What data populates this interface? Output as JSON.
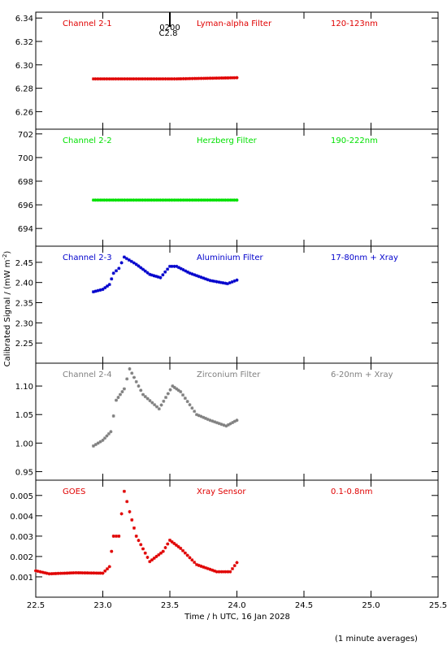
{
  "figure": {
    "ylabel": "Calibrated Signal / (mW m",
    "ylabel_sup": "-2",
    "ylabel_close": ")",
    "xlabel": "Time / h UTC, 16 Jan 2028",
    "footnote": "(1 minute averages)",
    "flare_marker": {
      "time_label": "0200",
      "class_label": "C2.8",
      "x": 23.5
    },
    "x_ticks": [
      "22.5",
      "23.0",
      "23.5",
      "24.0",
      "24.5",
      "25.0",
      "25.5"
    ],
    "xlim": [
      22.5,
      25.5
    ]
  },
  "chart_data": [
    {
      "type": "scatter",
      "channel_label": "Channel 2-1",
      "filter_label": "Lyman-alpha Filter",
      "band_label": "120-123nm",
      "color": "#e00000",
      "ylim": [
        6.245,
        6.345
      ],
      "y_ticks": [
        "6.26",
        "6.28",
        "6.30",
        "6.32",
        "6.34"
      ],
      "series": [
        {
          "segments": [
            {
              "x": [
                22.93,
                23.55,
                24.0
              ],
              "y": [
                6.288,
                6.288,
                6.289
              ]
            }
          ]
        }
      ]
    },
    {
      "type": "scatter",
      "channel_label": "Channel 2-2",
      "filter_label": "Herzberg Filter",
      "band_label": "190-222nm",
      "color": "#00e000",
      "ylim": [
        692.5,
        702.4
      ],
      "y_ticks": [
        "694",
        "696",
        "698",
        "700",
        "702"
      ],
      "series": [
        {
          "segments": [
            {
              "x": [
                22.93,
                24.0
              ],
              "y": [
                696.4,
                696.4
              ]
            }
          ]
        }
      ]
    },
    {
      "type": "scatter",
      "channel_label": "Channel 2-3",
      "filter_label": "Aluminium Filter",
      "band_label": "17-80nm + Xray",
      "color": "#0000cc",
      "ylim": [
        2.2,
        2.49
      ],
      "y_ticks": [
        "2.25",
        "2.30",
        "2.35",
        "2.40",
        "2.45"
      ],
      "series": [
        {
          "segments": [
            {
              "x": [
                22.93,
                23.0,
                23.05,
                23.08,
                23.12,
                23.16,
                23.25,
                23.35,
                23.43,
                23.5,
                23.55,
                23.65,
                23.8,
                23.93,
                24.0
              ],
              "y": [
                2.377,
                2.383,
                2.395,
                2.423,
                2.435,
                2.463,
                2.445,
                2.42,
                2.412,
                2.44,
                2.44,
                2.423,
                2.405,
                2.397,
                2.406
              ]
            }
          ]
        }
      ]
    },
    {
      "type": "scatter",
      "channel_label": "Channel 2-4",
      "filter_label": "Zirconium Filter",
      "band_label": "6-20nm + Xray",
      "color": "#808080",
      "ylim": [
        0.935,
        1.14
      ],
      "y_ticks": [
        "0.95",
        "1.00",
        "1.05",
        "1.10"
      ],
      "series": [
        {
          "segments": [
            {
              "x": [
                22.93,
                23.0,
                23.06,
                23.1,
                23.16,
                23.2,
                23.3,
                23.42,
                23.52,
                23.58,
                23.7,
                23.8,
                23.92,
                24.0
              ],
              "y": [
                0.995,
                1.005,
                1.02,
                1.075,
                1.095,
                1.13,
                1.085,
                1.06,
                1.1,
                1.09,
                1.05,
                1.04,
                1.03,
                1.04
              ]
            }
          ]
        }
      ]
    },
    {
      "type": "scatter",
      "channel_label": "GOES",
      "filter_label": "Xray Sensor",
      "band_label": "0.1-0.8nm",
      "color": "#e00000",
      "ylim": [
        0.0,
        0.00575
      ],
      "y_ticks": [
        "0.001",
        "0.002",
        "0.003",
        "0.004",
        "0.005"
      ],
      "series": [
        {
          "segments": [
            {
              "x": [
                22.5,
                22.6,
                22.8,
                23.0,
                23.05,
                23.08,
                23.12,
                23.16,
                23.2,
                23.25,
                23.35,
                23.45,
                23.5,
                23.58,
                23.7,
                23.85,
                23.95,
                24.0
              ],
              "y": [
                0.0013,
                0.00115,
                0.0012,
                0.00118,
                0.0015,
                0.003,
                0.003,
                0.0052,
                0.0042,
                0.003,
                0.00175,
                0.00225,
                0.0028,
                0.0024,
                0.0016,
                0.00125,
                0.00125,
                0.0017
              ]
            }
          ]
        }
      ]
    }
  ]
}
